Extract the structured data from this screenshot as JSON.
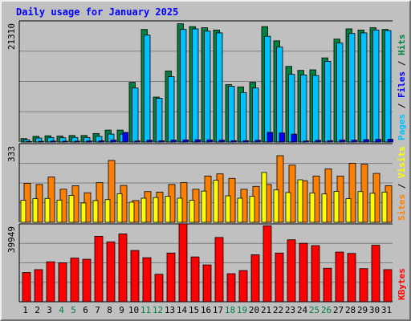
{
  "title": "Daily usage for January 2025",
  "chart_data": {
    "type": "bar",
    "title": "Daily usage for January 2025",
    "categories": [
      "1",
      "2",
      "3",
      "4",
      "5",
      "6",
      "7",
      "8",
      "9",
      "10",
      "11",
      "12",
      "13",
      "14",
      "15",
      "16",
      "17",
      "18",
      "19",
      "20",
      "21",
      "22",
      "23",
      "24",
      "25",
      "26",
      "27",
      "28",
      "29",
      "30",
      "31"
    ],
    "weekend_days": [
      "4",
      "5",
      "11",
      "12",
      "18",
      "19",
      "25",
      "26"
    ],
    "panels": [
      {
        "id": "hits",
        "ymax_label": "21310",
        "ymax": 21310,
        "legend": [
          "Pages",
          "Files",
          "Hits"
        ],
        "series": [
          {
            "name": "Hits",
            "color": "#008040",
            "values": [
              600,
              1000,
              1100,
              1050,
              1150,
              1150,
              1500,
              2100,
              2100,
              10500,
              19800,
              7900,
              12500,
              20800,
              20300,
              20100,
              19700,
              10100,
              9700,
              10500,
              20300,
              17800,
              13300,
              12600,
              12700,
              14800,
              18100,
              19900,
              19700,
              20100,
              19800
            ]
          },
          {
            "name": "Files",
            "color": "#00c0ff",
            "values": [
              400,
              700,
              800,
              750,
              800,
              800,
              1000,
              1400,
              1400,
              9500,
              18800,
              7700,
              11500,
              19800,
              19900,
              19500,
              19200,
              9800,
              8700,
              9500,
              18600,
              16700,
              11900,
              11800,
              11700,
              14200,
              17400,
              19100,
              19200,
              19700,
              19600
            ]
          },
          {
            "name": "Pages",
            "color": "#0000ff",
            "values": [
              90,
              130,
              170,
              140,
              150,
              180,
              220,
              350,
              1700,
              200,
              330,
              230,
              330,
              380,
              400,
              380,
              330,
              240,
              240,
              310,
              1700,
              1600,
              1400,
              200,
              300,
              250,
              370,
              340,
              420,
              480,
              490
            ]
          }
        ]
      },
      {
        "id": "visits",
        "ymax_label": "333",
        "ymax": 333,
        "legend": [
          "Sites",
          "Visits"
        ],
        "series": [
          {
            "name": "Visits",
            "color": "#ff8000",
            "values": [
              165,
              160,
              192,
              140,
              155,
              125,
              168,
              262,
              156,
              92,
              130,
              128,
              160,
              168,
              140,
              196,
              205,
              186,
              140,
              152,
              160,
              282,
              242,
              176,
              196,
              226,
              196,
              250,
              246,
              207,
              155
            ]
          },
          {
            "name": "Sites",
            "color": "#ffff00",
            "values": [
              93,
              100,
              101,
              94,
              114,
              82,
              92,
              96,
              121,
              85,
              102,
              105,
              110,
              102,
              93,
              132,
              178,
              112,
              102,
              110,
              211,
              137,
              126,
              180,
              124,
              120,
              131,
              100,
              130,
              123,
              128
            ]
          }
        ]
      },
      {
        "id": "kbytes",
        "ymax_label": "39949",
        "ymax": 39949,
        "legend": [
          "KBytes"
        ],
        "series": [
          {
            "name": "KBytes",
            "color": "#ff0000",
            "values": [
              15000,
              16500,
              20500,
              20000,
              22400,
              21800,
              33600,
              30700,
              34800,
              26300,
              22600,
              14100,
              25000,
              40000,
              23000,
              18900,
              33000,
              14400,
              16000,
              24100,
              39000,
              25000,
              31800,
              30000,
              28800,
              17200,
              25500,
              24800,
              17000,
              29000,
              16500
            ]
          }
        ]
      }
    ]
  },
  "colors": {
    "hits": "#008040",
    "files": "#00c0ff",
    "pages": "#0000ff",
    "visits": "#ff8000",
    "sites": "#ffff00",
    "kbytes": "#ff0000",
    "separator": "#000000",
    "panel_bg": "#c0c0c0",
    "gridline": "#808080",
    "title": "#0000ff",
    "weekday_label": "#000000",
    "weekend_label": "#008040"
  }
}
